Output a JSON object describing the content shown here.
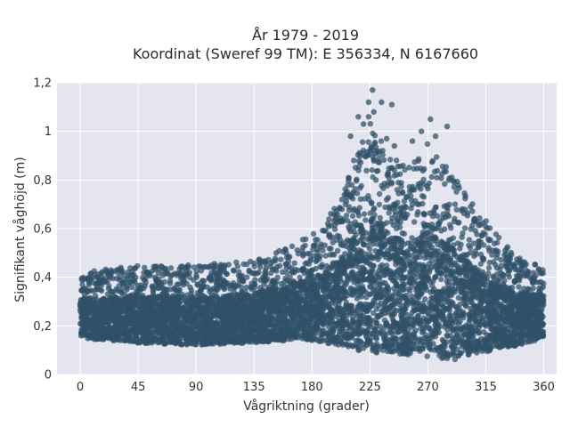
{
  "chart_data": {
    "type": "scatter",
    "title_line1": "År 1979 - 2019",
    "title_line2": "Koordinat (Sweref 99 TM): E 356334, N 6167660",
    "xlabel": "Vågriktning (grader)",
    "ylabel": "Signifikant våghöjd (m)",
    "xlim": [
      -18,
      370
    ],
    "ylim": [
      0,
      1.2
    ],
    "xticks": [
      0,
      45,
      90,
      135,
      180,
      225,
      270,
      315,
      360
    ],
    "xtick_labels": [
      "0",
      "45",
      "90",
      "135",
      "180",
      "225",
      "270",
      "315",
      "360"
    ],
    "yticks": [
      0,
      0.2,
      0.4,
      0.6,
      0.8,
      1.0,
      1.2
    ],
    "ytick_labels": [
      "0",
      "0,2",
      "0,4",
      "0,6",
      "0,8",
      "1",
      "1,2"
    ],
    "grid": true,
    "colors": {
      "plot_bg": "#e5e5ef",
      "marker": "#2f5068",
      "grid": "#ffffff"
    },
    "envelope": {
      "direction": [
        0,
        45,
        90,
        135,
        160,
        180,
        200,
        215,
        225,
        240,
        255,
        270,
        290,
        305,
        320,
        340,
        360
      ],
      "lower": [
        0.15,
        0.13,
        0.12,
        0.13,
        0.14,
        0.14,
        0.12,
        0.1,
        0.09,
        0.09,
        0.08,
        0.07,
        0.06,
        0.08,
        0.1,
        0.12,
        0.15
      ],
      "upper": [
        0.42,
        0.45,
        0.45,
        0.47,
        0.52,
        0.58,
        0.7,
        0.92,
        1.05,
        0.9,
        0.85,
        0.95,
        0.82,
        0.7,
        0.6,
        0.48,
        0.45
      ]
    },
    "outliers": [
      {
        "x": 227,
        "y": 1.17
      },
      {
        "x": 224,
        "y": 1.12
      },
      {
        "x": 234,
        "y": 1.12
      },
      {
        "x": 242,
        "y": 1.11
      },
      {
        "x": 228,
        "y": 1.08
      },
      {
        "x": 224,
        "y": 1.06
      },
      {
        "x": 216,
        "y": 1.06
      },
      {
        "x": 220,
        "y": 1.03
      },
      {
        "x": 272,
        "y": 1.05
      },
      {
        "x": 285,
        "y": 1.02
      },
      {
        "x": 265,
        "y": 1.0
      },
      {
        "x": 276,
        "y": 0.98
      },
      {
        "x": 238,
        "y": 0.97
      },
      {
        "x": 244,
        "y": 0.94
      },
      {
        "x": 258,
        "y": 0.96
      },
      {
        "x": 210,
        "y": 0.98
      }
    ]
  }
}
